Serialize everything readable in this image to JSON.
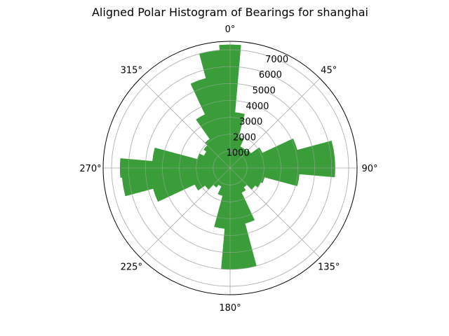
{
  "chart_data": {
    "type": "bar",
    "projection": "polar",
    "title": "Aligned Polar Histogram of Bearings for shanghai",
    "theta_zero": "north",
    "theta_direction": "clockwise",
    "bin_width_deg": 10,
    "rlim": [
      0,
      7500
    ],
    "grid": true,
    "bar_color": "#3a9d3a",
    "angle_ticks": [
      "0°",
      "45°",
      "90°",
      "135°",
      "180°",
      "225°",
      "270°",
      "315°"
    ],
    "radial_ticks": [
      1000,
      2000,
      3000,
      4000,
      5000,
      6000,
      7000
    ],
    "bins": [
      0,
      10,
      20,
      30,
      40,
      50,
      60,
      70,
      80,
      90,
      100,
      110,
      120,
      130,
      140,
      150,
      160,
      170,
      180,
      190,
      200,
      210,
      220,
      230,
      240,
      250,
      260,
      270,
      280,
      290,
      300,
      310,
      320,
      330,
      340,
      350
    ],
    "values": [
      7300,
      3300,
      1900,
      1400,
      1400,
      1500,
      2100,
      4100,
      6200,
      6200,
      4100,
      2100,
      2000,
      1800,
      1400,
      1600,
      3400,
      6000,
      6000,
      3600,
      1700,
      1200,
      1400,
      1800,
      2300,
      4700,
      6400,
      6500,
      4600,
      2000,
      1700,
      1900,
      2100,
      3500,
      5500,
      7000
    ]
  }
}
